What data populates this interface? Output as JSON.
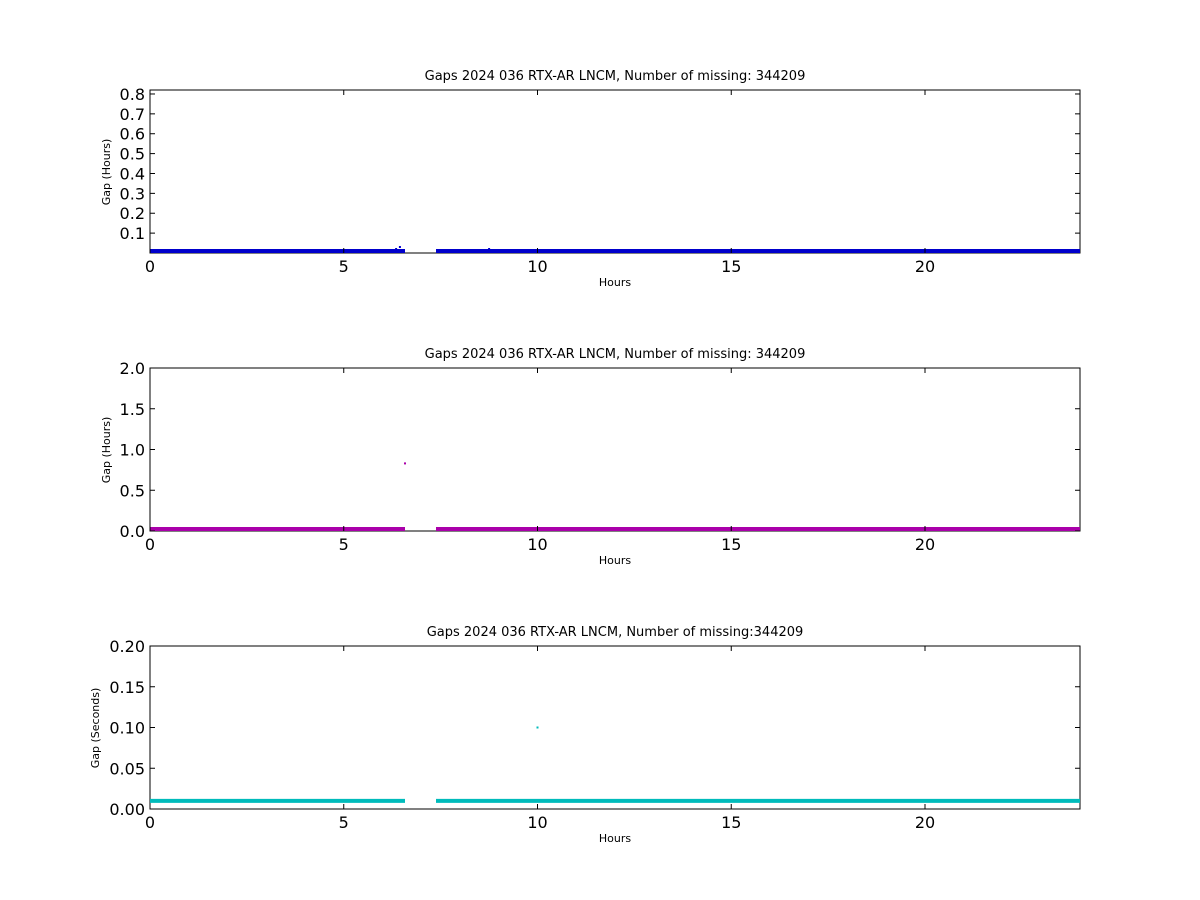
{
  "figure": {
    "background": "#ffffff"
  },
  "chart_data": [
    {
      "type": "scatter",
      "title": "Gaps 2024 036 RTX-AR  LNCM, Number of missing: 344209",
      "xlabel": "Hours",
      "ylabel": "Gap (Hours)",
      "xlim": [
        0,
        24
      ],
      "ylim": [
        0,
        0.82
      ],
      "xticks": [
        0,
        5,
        10,
        15,
        20
      ],
      "yticks": [
        0.1,
        0.2,
        0.3,
        0.4,
        0.5,
        0.6,
        0.7,
        0.8
      ],
      "xtick_labels": [
        "0",
        "5",
        "10",
        "15",
        "20"
      ],
      "ytick_labels": [
        "0.1",
        "0.2",
        "0.3",
        "0.4",
        "0.5",
        "0.6",
        "0.7",
        "0.8"
      ],
      "grid": false,
      "color": "#0000cc",
      "series": [
        {
          "baseline_value": 0.0028,
          "segments": [
            [
              0,
              6.58
            ],
            [
              7.38,
              24
            ]
          ],
          "outliers": [
            {
              "x": 6.35,
              "y": 0.02
            },
            {
              "x": 6.45,
              "y": 0.03
            },
            {
              "x": 6.52,
              "y": 0.01
            },
            {
              "x": 8.75,
              "y": 0.02
            }
          ]
        }
      ]
    },
    {
      "type": "scatter",
      "title": "Gaps 2024 036 RTX-AR  LNCM, Number of missing: 344209",
      "xlabel": "Hours",
      "ylabel": "Gap (Hours)",
      "xlim": [
        0,
        24
      ],
      "ylim": [
        0,
        2.0
      ],
      "xticks": [
        0,
        5,
        10,
        15,
        20
      ],
      "yticks": [
        0.0,
        0.5,
        1.0,
        1.5,
        2.0
      ],
      "xtick_labels": [
        "0",
        "5",
        "10",
        "15",
        "20"
      ],
      "ytick_labels": [
        "0.0",
        "0.5",
        "1.0",
        "1.5",
        "2.0"
      ],
      "grid": false,
      "color": "#aa00aa",
      "series": [
        {
          "baseline_value": 0.0028,
          "segments": [
            [
              0,
              6.58
            ],
            [
              7.38,
              24
            ]
          ],
          "outliers": [
            {
              "x": 6.58,
              "y": 0.83
            },
            {
              "x": 6.45,
              "y": 0.02
            },
            {
              "x": 8.75,
              "y": 0.02
            }
          ]
        }
      ]
    },
    {
      "type": "scatter",
      "title": "Gaps 2024 036 RTX-AR  LNCM, Number of missing:344209",
      "xlabel": "Hours",
      "ylabel": "Gap (Seconds)",
      "xlim": [
        0,
        24
      ],
      "ylim": [
        0,
        0.2
      ],
      "xticks": [
        0,
        5,
        10,
        15,
        20
      ],
      "yticks": [
        0.0,
        0.05,
        0.1,
        0.15,
        0.2
      ],
      "xtick_labels": [
        "0",
        "5",
        "10",
        "15",
        "20"
      ],
      "ytick_labels": [
        "0.00",
        "0.05",
        "0.10",
        "0.15",
        "0.20"
      ],
      "grid": false,
      "color": "#00bbbb",
      "series": [
        {
          "baseline_value": 0.01,
          "segments": [
            [
              0,
              6.58
            ],
            [
              7.38,
              24
            ]
          ],
          "outliers": [
            {
              "x": 10.0,
              "y": 0.1
            }
          ]
        }
      ]
    }
  ]
}
